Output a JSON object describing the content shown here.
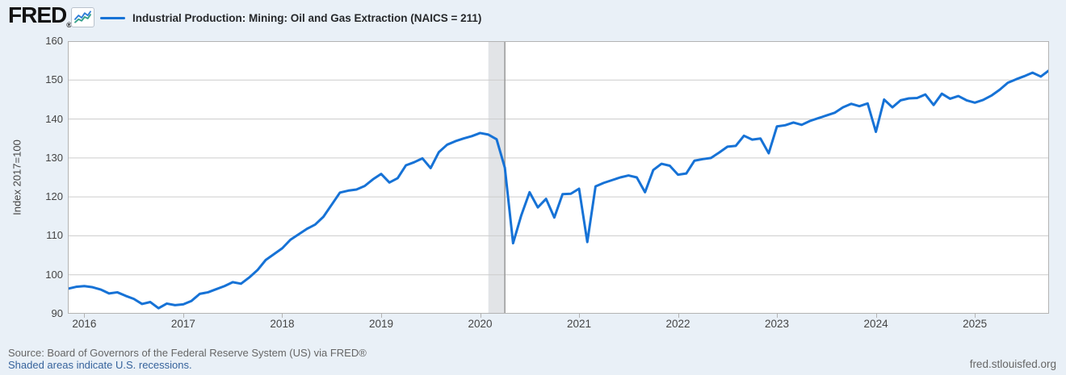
{
  "header": {
    "brand": "FRED",
    "registered_mark": "®",
    "logo_icon": "line-chart-icon"
  },
  "chart_data": {
    "type": "line",
    "title": "Industrial Production: Mining: Oil and Gas Extraction (NAICS = 211)",
    "ylabel": "Index 2017=100",
    "xlabel": "",
    "ylim": [
      90,
      160
    ],
    "yticks": [
      90,
      100,
      110,
      120,
      130,
      140,
      150,
      160
    ],
    "xticks": [
      "2016",
      "2017",
      "2018",
      "2019",
      "2020",
      "2021",
      "2022",
      "2023",
      "2024",
      "2025"
    ],
    "frequency": "monthly",
    "observation_start": "2015-11",
    "observation_end": "2025-10",
    "grid": true,
    "legend_position": "top-left",
    "recession_bands": [
      {
        "start": "2020-02",
        "end": "2020-04"
      }
    ],
    "series": [
      {
        "name": "Industrial Production: Mining: Oil and Gas Extraction (NAICS = 211)",
        "values": [
          96.4,
          96.9,
          97.1,
          96.8,
          96.2,
          95.2,
          95.5,
          94.6,
          93.8,
          92.5,
          93.0,
          91.4,
          92.6,
          92.2,
          92.4,
          93.3,
          95.1,
          95.5,
          96.3,
          97.1,
          98.1,
          97.7,
          99.3,
          101.2,
          103.8,
          105.3,
          106.8,
          109.0,
          110.4,
          111.8,
          112.9,
          114.9,
          118.0,
          121.1,
          121.6,
          121.9,
          122.8,
          124.5,
          125.9,
          123.7,
          124.8,
          128.1,
          128.9,
          129.9,
          127.4,
          131.5,
          133.4,
          134.3,
          135.0,
          135.6,
          136.4,
          136.0,
          134.8,
          127.5,
          108.1,
          115.3,
          121.2,
          117.3,
          119.5,
          114.7,
          120.7,
          120.8,
          122.1,
          108.4,
          122.7,
          123.6,
          124.3,
          125.0,
          125.5,
          125.0,
          121.2,
          126.9,
          128.5,
          128.0,
          125.7,
          126.0,
          129.3,
          129.7,
          130.0,
          131.4,
          132.9,
          133.1,
          135.7,
          134.7,
          135.0,
          131.2,
          138.1,
          138.4,
          139.1,
          138.5,
          139.5,
          140.2,
          140.9,
          141.6,
          143.0,
          143.9,
          143.3,
          144.0,
          136.7,
          145.0,
          143.0,
          144.8,
          145.3,
          145.4,
          146.3,
          143.6,
          146.5,
          145.2,
          145.9,
          144.8,
          144.2,
          144.9,
          146.0,
          147.5,
          149.3,
          150.2,
          151.0,
          151.9,
          150.9,
          152.5
        ]
      }
    ]
  },
  "footer": {
    "source": "Source: Board of Governors of the Federal Reserve System (US) via FRED®",
    "recession_note": "Shaded areas indicate U.S. recessions.",
    "site": "fred.stlouisfed.org"
  },
  "colors": {
    "background": "#e9f0f7",
    "plot_background": "#ffffff",
    "line": "#1672d6",
    "grid": "#cccccc",
    "plot_border": "#b3b3b3",
    "recession_band": "#e2e4e7",
    "recession_edge": "#999999",
    "tick_text": "#444444",
    "muted_text": "#666666",
    "link": "#36639c",
    "logo_icon_blue": "#2f7ed8",
    "logo_icon_teal": "#36a18b"
  }
}
